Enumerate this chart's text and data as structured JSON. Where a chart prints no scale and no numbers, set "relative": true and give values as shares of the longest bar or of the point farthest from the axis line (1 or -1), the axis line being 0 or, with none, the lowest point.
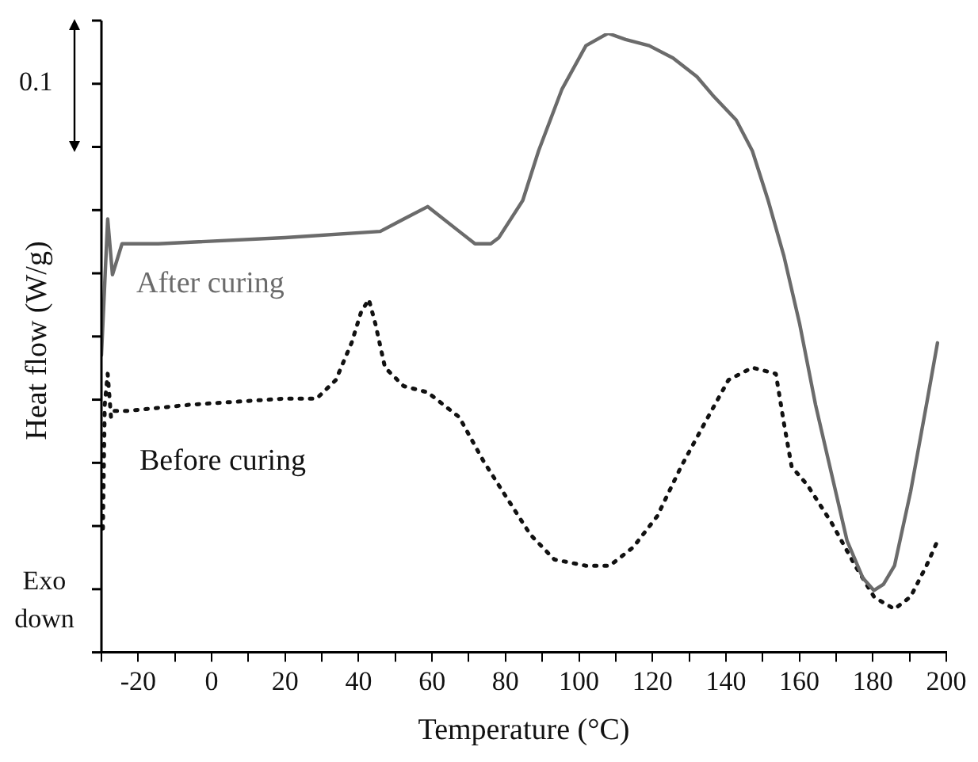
{
  "chart_data": {
    "type": "line",
    "relative": true,
    "xlabel": "Temperature (°C)",
    "ylabel": "Heat flow (W/g)",
    "xlim": [
      -30,
      200
    ],
    "xticks": [
      {
        "value": -30,
        "label": null
      },
      -20,
      {
        "value": -10,
        "label": null
      },
      0,
      {
        "value": 10,
        "label": null
      },
      20,
      {
        "value": 30,
        "label": null
      },
      40,
      {
        "value": 50,
        "label": null
      },
      60,
      {
        "value": 70,
        "label": null
      },
      80,
      {
        "value": 90,
        "label": null
      },
      100,
      {
        "value": 110,
        "label": null
      },
      120,
      {
        "value": 130,
        "label": null
      },
      140,
      {
        "value": 150,
        "label": null
      },
      160,
      {
        "value": 170,
        "label": null
      },
      180,
      {
        "value": 190,
        "label": null
      },
      200
    ],
    "grid": false,
    "legend": false,
    "marker": "none",
    "annotations": [
      "0.1",
      "Exo down"
    ],
    "series": [
      {
        "name": "After curing",
        "color": "#6b6b6b",
        "line_style": "solid",
        "x": [
          -30,
          -28.3,
          -27,
          -24.4,
          -14.5,
          20,
          45.9,
          52.3,
          58.8,
          67.4,
          71.7,
          76,
          78.2,
          84.7,
          89,
          95.4,
          101.9,
          107.9,
          112.7,
          119.1,
          125.6,
          132.1,
          136.4,
          142.8,
          147.2,
          151.5,
          155.8,
          160.1,
          164.4,
          168.7,
          173,
          177.3,
          180.3,
          182.9,
          185.9,
          190.3,
          194.6,
          197.6
        ],
        "values": [
          0.48,
          0.7,
          0.61,
          0.66,
          0.66,
          0.67,
          0.68,
          0.7,
          0.72,
          0.68,
          0.66,
          0.66,
          0.67,
          0.73,
          0.81,
          0.91,
          0.98,
          1,
          0.99,
          0.98,
          0.96,
          0.93,
          0.9,
          0.86,
          0.81,
          0.73,
          0.64,
          0.53,
          0.4,
          0.29,
          0.18,
          0.12,
          0.1,
          0.11,
          0.14,
          0.26,
          0.4,
          0.5
        ]
      },
      {
        "name": "Before curing",
        "color": "#111111",
        "line_style": "dotted",
        "x": [
          -29.6,
          -29.1,
          -28.3,
          -27.4,
          -26.6,
          -23.1,
          -5.9,
          20,
          28.6,
          33.8,
          38.1,
          40.7,
          42.8,
          44.6,
          47.2,
          52.3,
          58.8,
          67.4,
          73.9,
          80.3,
          86.8,
          93.3,
          101.9,
          108.4,
          114.8,
          121.3,
          127.8,
          134.2,
          140.7,
          147.2,
          153.6,
          155.8,
          157.9,
          162.2,
          168.7,
          175.2,
          180.3,
          182.9,
          185.9,
          190.3,
          194.6,
          197.6
        ],
        "values": [
          0.2,
          0.4,
          0.45,
          0.38,
          0.39,
          0.39,
          0.4,
          0.41,
          0.41,
          0.44,
          0.5,
          0.55,
          0.57,
          0.53,
          0.46,
          0.43,
          0.42,
          0.38,
          0.31,
          0.25,
          0.19,
          0.15,
          0.14,
          0.14,
          0.17,
          0.22,
          0.3,
          0.37,
          0.44,
          0.46,
          0.45,
          0.37,
          0.3,
          0.27,
          0.21,
          0.14,
          0.09,
          0.08,
          0.07,
          0.09,
          0.14,
          0.18
        ]
      }
    ]
  }
}
